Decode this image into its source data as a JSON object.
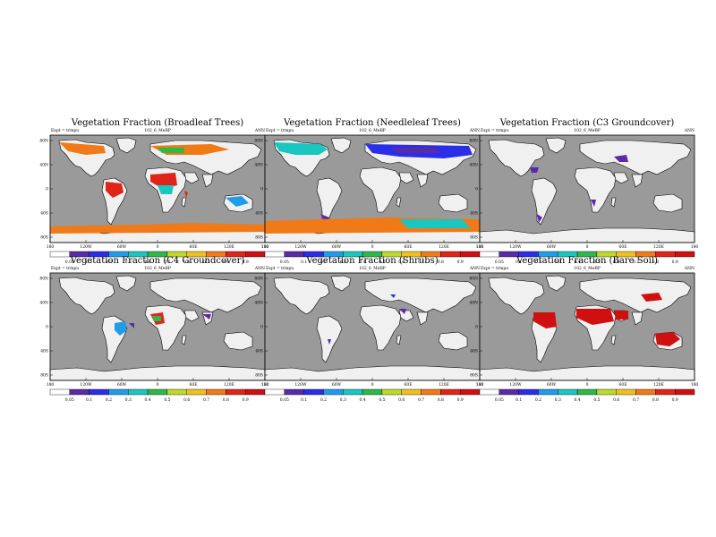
{
  "common": {
    "expt_label": "Expt = trmpu",
    "season": "ANN",
    "lon_ticks": [
      "180",
      "120W",
      "60W",
      "0",
      "60E",
      "120E",
      "180"
    ],
    "lat_ticks": [
      "80N",
      "40N",
      "0",
      "40S",
      "80S"
    ],
    "colorbar_labels": [
      "0.05",
      "0.1",
      "0.2",
      "0.3",
      "0.4",
      "0.5",
      "0.6",
      "0.7",
      "0.8",
      "0.9"
    ],
    "colorbar_colors": [
      "#ffffff",
      "#5a2aa8",
      "#2a2ee8",
      "#1f9cea",
      "#19c6c0",
      "#2fb84a",
      "#bfd92a",
      "#f0c020",
      "#f07a18",
      "#e02418",
      "#d01010"
    ],
    "land_color": "#f0f0f0",
    "ocean_color": "#9a9a9a"
  },
  "panels": [
    {
      "title": "Vegetation Fraction (Broadleaf Trees)",
      "subtitle": "102_6_MeBP"
    },
    {
      "title": "Vegetation Fraction (Needleleaf Trees)",
      "subtitle": "102_6_MeBP"
    },
    {
      "title": "Vegetation Fraction (C3 Groundcover)",
      "subtitle": "102_6_MeBP"
    },
    {
      "title": "Vegetation Fraction (C4 Groundcover)",
      "subtitle": "102_6_MeBP"
    },
    {
      "title": "Vegetation Fraction (Shrubs)",
      "subtitle": "102_6_MeBP"
    },
    {
      "title": "Vegetation Fraction (Bare Soil)",
      "subtitle": "102_6_MeBP"
    }
  ]
}
